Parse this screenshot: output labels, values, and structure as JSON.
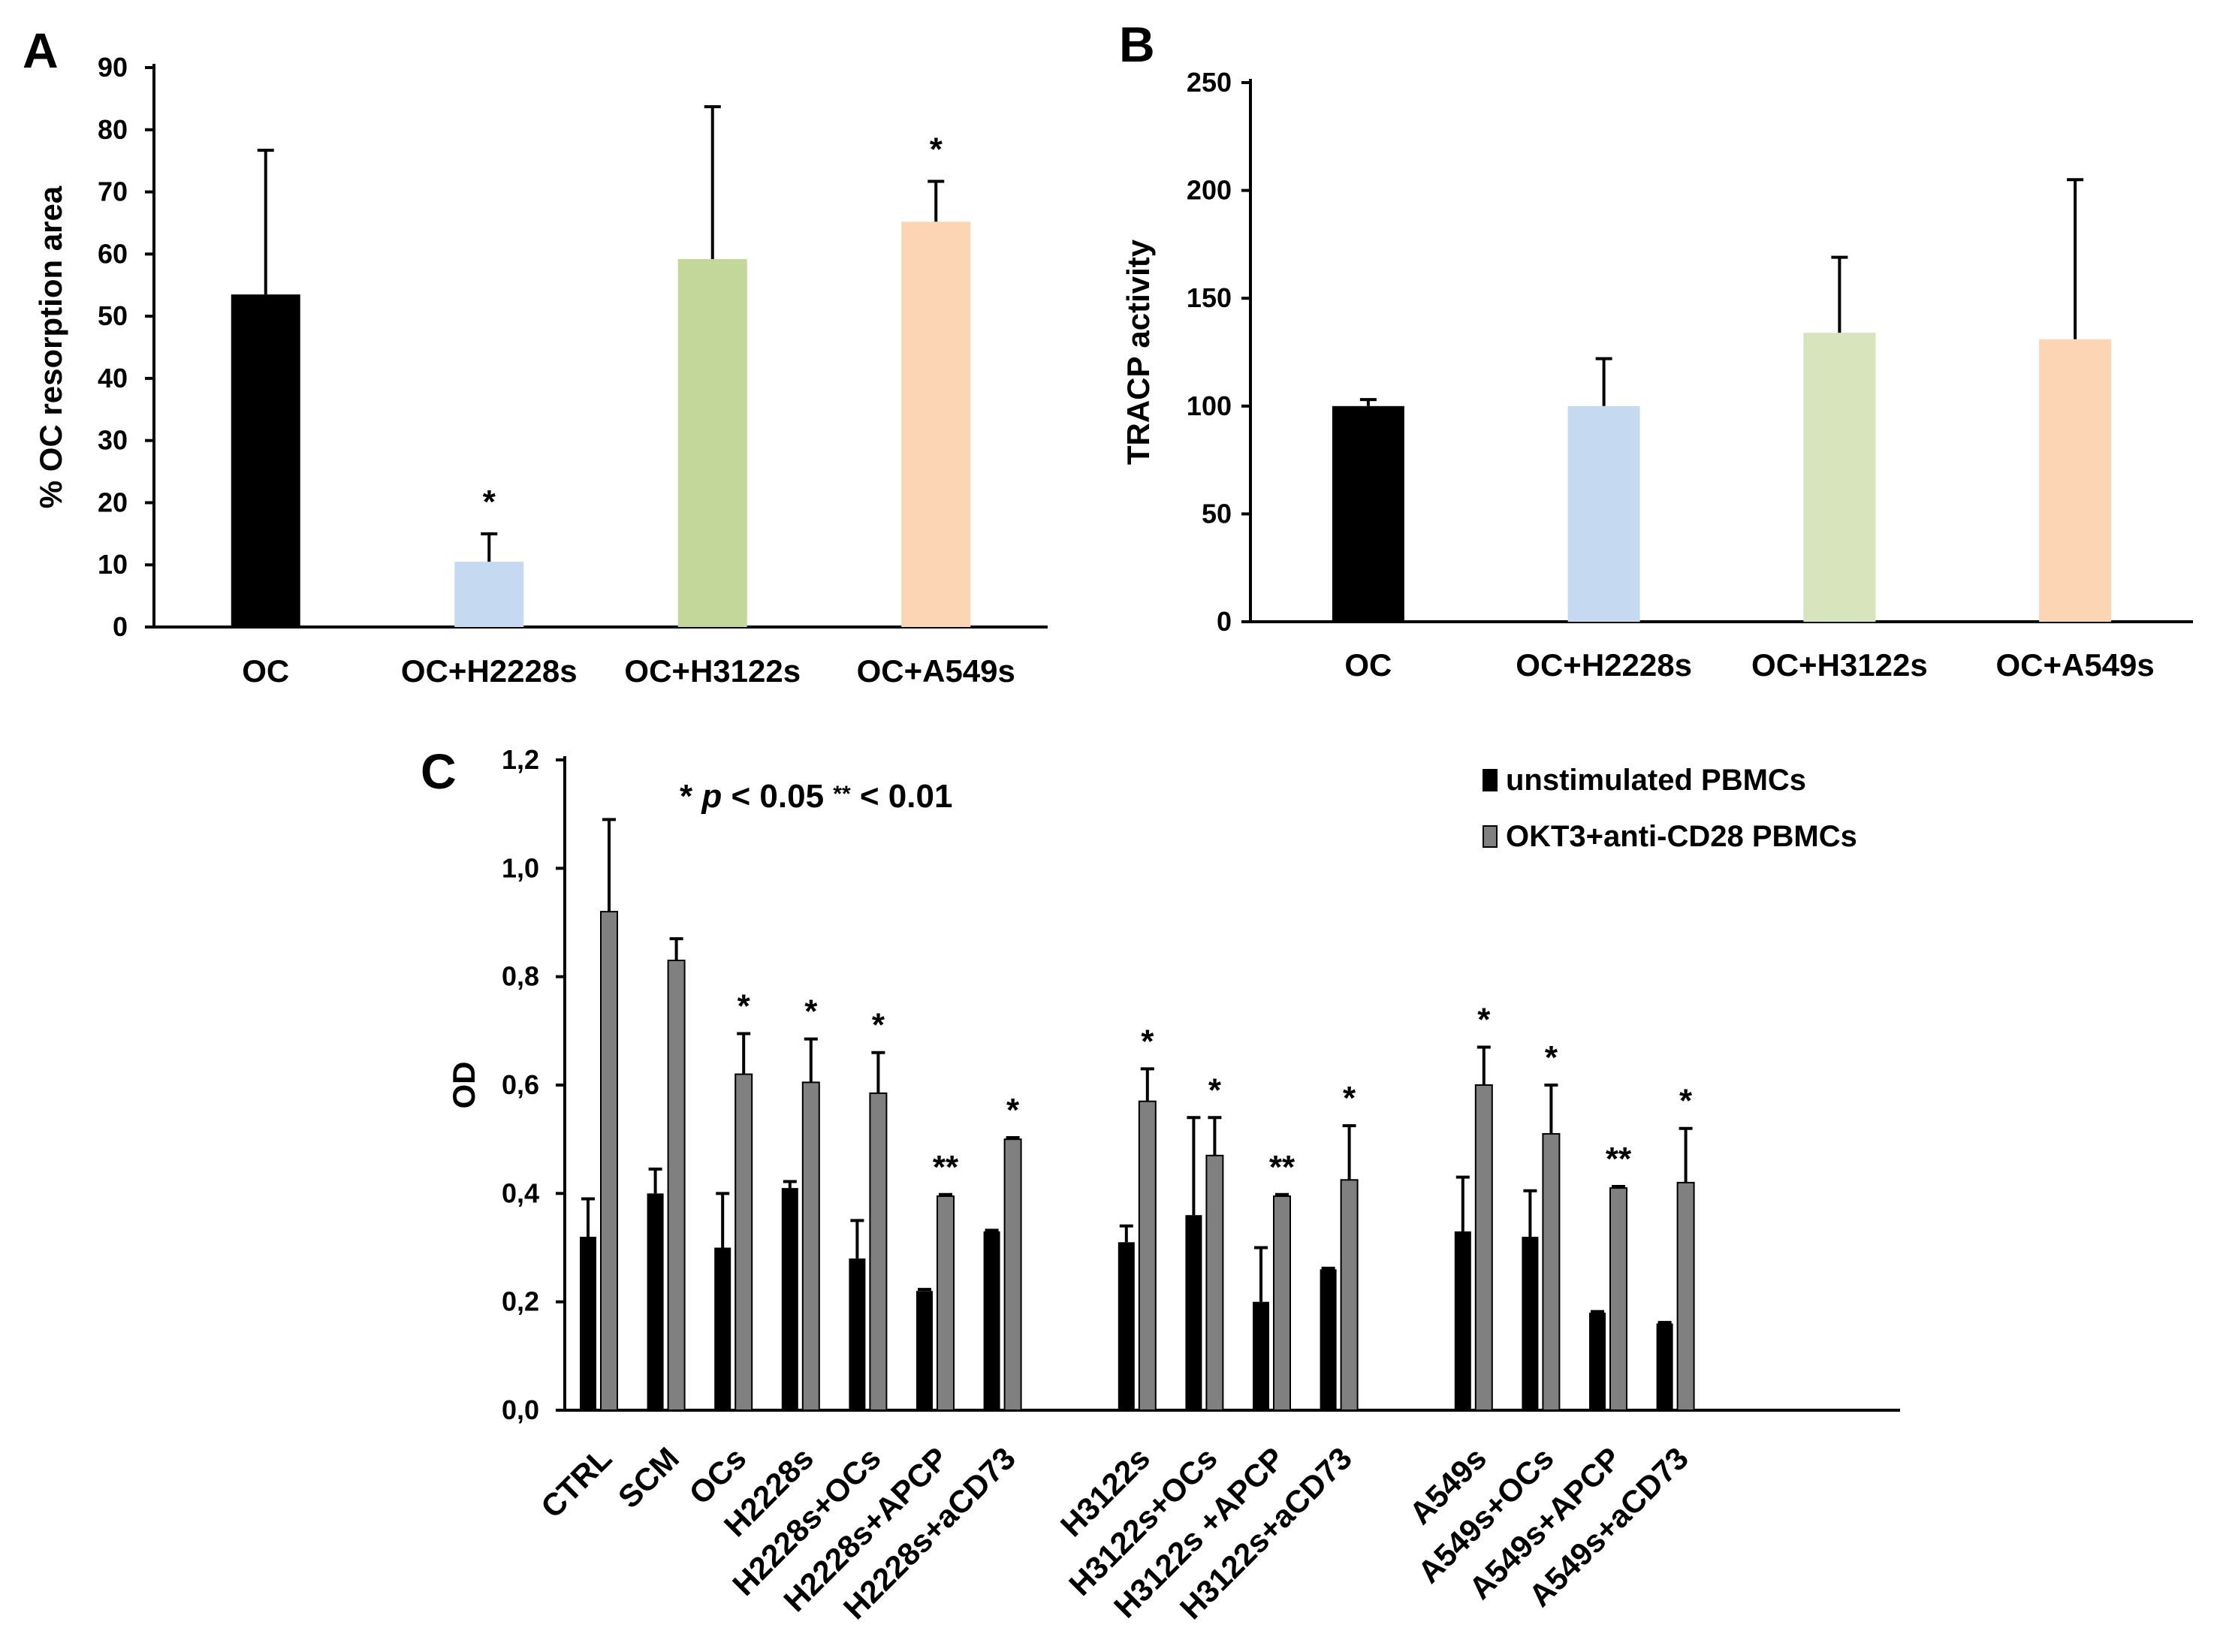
{
  "chart_data": [
    {
      "panel": "A",
      "type": "bar",
      "ylabel": "% OC resorption area",
      "ylim": [
        0,
        90
      ],
      "yticks": [
        0,
        10,
        20,
        30,
        40,
        50,
        60,
        70,
        80,
        90
      ],
      "categories": [
        "OC",
        "OC+H2228s",
        "OC+H3122s",
        "OC+A549s"
      ],
      "values": [
        53.5,
        10.5,
        59.2,
        65.2
      ],
      "errors": [
        23.2,
        4.5,
        24.5,
        6.5
      ],
      "colors": [
        "#000000",
        "#c5d9f1",
        "#c4d79b",
        "#fcd5b4"
      ],
      "significance": [
        "",
        "*",
        "",
        "*"
      ]
    },
    {
      "panel": "B",
      "type": "bar",
      "ylabel": "TRACP activity",
      "ylim": [
        0,
        250
      ],
      "yticks": [
        0,
        50,
        100,
        150,
        200,
        250
      ],
      "categories": [
        "OC",
        "OC+H2228s",
        "OC+H3122s",
        "OC+A549s"
      ],
      "values": [
        100,
        100,
        134,
        131
      ],
      "errors": [
        3,
        22,
        35,
        74
      ],
      "colors": [
        "#000000",
        "#c5d9f1",
        "#d7e4bc",
        "#fcd5b4"
      ],
      "significance": [
        "",
        "",
        "",
        ""
      ]
    },
    {
      "panel": "C",
      "type": "bar",
      "ylabel": "OD",
      "ylim": [
        0,
        1.2
      ],
      "yticks": [
        "0,0",
        "0,2",
        "0,4",
        "0,6",
        "0,8",
        "1,0",
        "1,2"
      ],
      "annotation": {
        "star": "*",
        "p": "p",
        "rest": "< 0.05",
        "stars2": "**",
        "rest2": "< 0.01"
      },
      "categories": [
        "CTRL",
        "SCM",
        "OCs",
        "H2228s",
        "H2228s+OCs",
        "H2228s+APCP",
        "H2228s+aCD73",
        "H3122s",
        "H3122s+OCs",
        "H3122s +APCP",
        "H3122s+aCD73",
        "A549s",
        "A549s+OCs",
        "A549s+APCP",
        "A549s+aCD73"
      ],
      "group_slots": [
        0,
        1,
        2,
        3,
        4,
        5,
        6,
        8,
        9,
        10,
        11,
        13,
        14,
        15,
        16
      ],
      "series": [
        {
          "name": "unstimulated PBMCs",
          "color": "#000000",
          "values": [
            0.32,
            0.4,
            0.3,
            0.41,
            0.28,
            0.22,
            0.33,
            0.31,
            0.36,
            0.2,
            0.26,
            0.33,
            0.32,
            0.18,
            0.16
          ],
          "errors": [
            0.07,
            0.045,
            0.1,
            0.012,
            0.07,
            0.003,
            0.002,
            0.03,
            0.18,
            0.1,
            0.002,
            0.1,
            0.085,
            0.002,
            0.002
          ]
        },
        {
          "name": "OKT3+anti-CD28 PBMCs",
          "color": "#808080",
          "values": [
            0.92,
            0.83,
            0.62,
            0.605,
            0.585,
            0.395,
            0.5,
            0.57,
            0.47,
            0.395,
            0.425,
            0.6,
            0.51,
            0.41,
            0.42
          ],
          "errors": [
            0.17,
            0.04,
            0.075,
            0.08,
            0.075,
            0.003,
            0.003,
            0.06,
            0.07,
            0.003,
            0.1,
            0.07,
            0.09,
            0.003,
            0.1
          ]
        }
      ],
      "significance": [
        "",
        "",
        "*",
        "*",
        "*",
        "**",
        "*",
        "*",
        "*",
        "**",
        "*",
        "*",
        "*",
        "**",
        "*"
      ]
    }
  ]
}
